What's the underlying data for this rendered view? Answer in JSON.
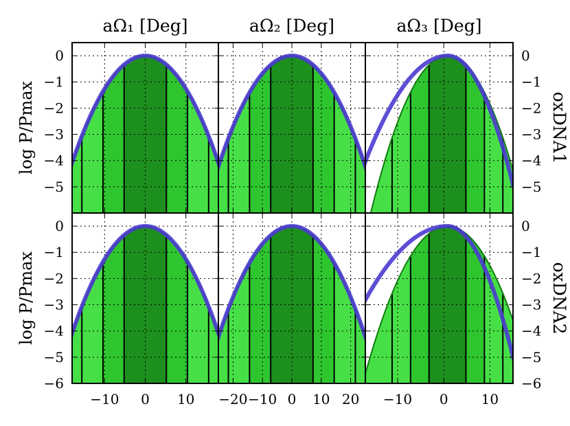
{
  "chart_data": {
    "type": "area",
    "columns": [
      {
        "title": "aΩ₁ [Deg]",
        "xlim": [
          -18,
          18
        ],
        "xticks": [
          -10,
          0,
          10
        ],
        "xtick_labels": [
          "−10",
          "0",
          "10"
        ],
        "hist_width": 5.2
      },
      {
        "title": "aΩ₂ [Deg]",
        "xlim": [
          -25,
          25
        ],
        "xticks": [
          -20,
          -10,
          0,
          10,
          20
        ],
        "xtick_labels": [
          "−20",
          "−10",
          "0",
          "10",
          "20"
        ],
        "hist_width": 7.2
      },
      {
        "title": "aΩ₃ [Deg]",
        "xlim": [
          -17,
          15
        ],
        "xticks": [
          -10,
          0,
          10
        ],
        "xtick_labels": [
          "−10",
          "0",
          "10"
        ],
        "hist_width": 4.0
      }
    ],
    "rows": [
      {
        "label": "oxDNA1",
        "ylim": [
          -6,
          0.5
        ],
        "yticks": [
          0,
          -1,
          -2,
          -3,
          -4,
          -5
        ],
        "ytick_labels": [
          "0",
          "−1",
          "−2",
          "−3",
          "−4",
          "−5"
        ]
      },
      {
        "label": "oxDNA2",
        "ylim": [
          -6,
          0.5
        ],
        "yticks": [
          0,
          -1,
          -2,
          -3,
          -4,
          -5,
          -6
        ],
        "ytick_labels": [
          "0",
          "−1",
          "−2",
          "−3",
          "−4",
          "−5",
          "−6"
        ]
      }
    ],
    "ylabel": "log P/Pmax",
    "series": [
      {
        "role": "histogram-fill",
        "color": "#1e9b1e"
      },
      {
        "role": "gaussian-fit",
        "color": "#4b3bd0"
      }
    ],
    "panels": [
      {
        "row": 0,
        "col": 0,
        "hist_center": 0,
        "hist_sigma": 6.3,
        "fit_center": 0,
        "fit_sigma": 6.3
      },
      {
        "row": 0,
        "col": 1,
        "hist_center": 0,
        "hist_sigma": 8.6,
        "fit_center": 0,
        "fit_sigma": 8.6
      },
      {
        "row": 0,
        "col": 2,
        "hist_center": 0.8,
        "hist_sigma": 4.8,
        "fit_center": 0.9,
        "fit_sigma": 5.3,
        "fit_left_sigma": 6.3,
        "fit_right_sigma": 4.5
      },
      {
        "row": 1,
        "col": 0,
        "hist_center": 0,
        "hist_sigma": 6.3,
        "fit_center": 0,
        "fit_sigma": 6.3
      },
      {
        "row": 1,
        "col": 1,
        "hist_center": 0,
        "hist_sigma": 8.6,
        "fit_center": 0,
        "fit_sigma": 8.6
      },
      {
        "row": 1,
        "col": 2,
        "hist_center": 0.8,
        "hist_sigma": 5.3,
        "fit_center": 0.8,
        "fit_sigma": 5.3,
        "fit_left_sigma": 7.5,
        "fit_right_sigma": 4.5
      }
    ],
    "grid": true
  }
}
